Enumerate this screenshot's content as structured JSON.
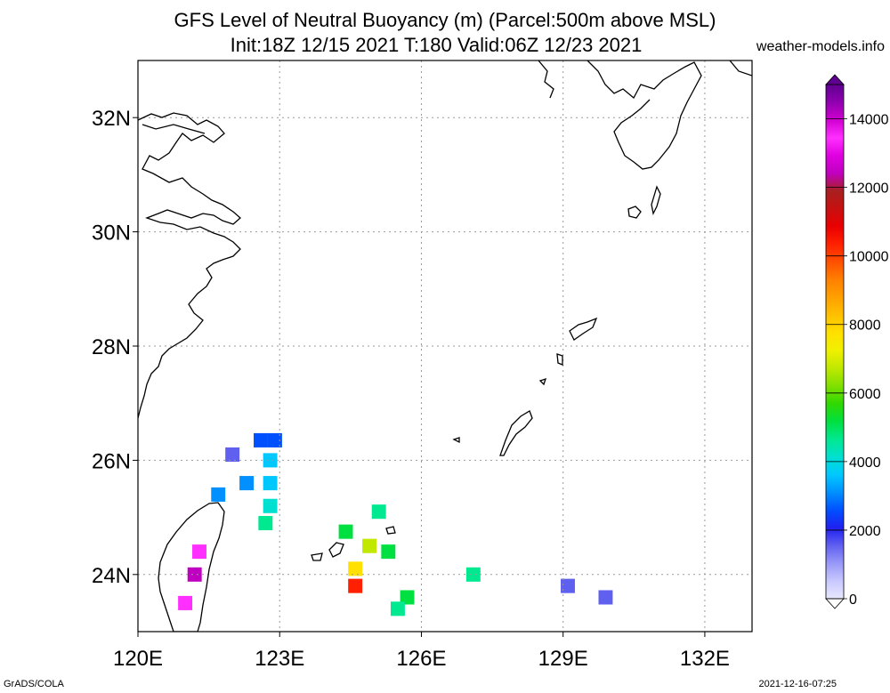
{
  "header": {
    "title_line1": "GFS Level of Neutral Buoyancy (m) (Parcel:500m above MSL)",
    "title_line2": "Init:18Z 12/15 2021 T:180 Valid:06Z 12/23 2021",
    "site": "weather-models.info"
  },
  "map": {
    "lon_range": [
      120,
      133
    ],
    "lat_range": [
      23,
      33
    ],
    "lon_ticks": [
      "120E",
      "123E",
      "126E",
      "129E",
      "132E"
    ],
    "lat_ticks": [
      "24N",
      "26N",
      "28N",
      "30N",
      "32N"
    ],
    "grid": "dotted"
  },
  "colorbar": {
    "unit": "m",
    "range": [
      0,
      15000
    ],
    "tick_labels": [
      "0",
      "2000",
      "4000",
      "6000",
      "8000",
      "10000",
      "12000",
      "14000"
    ],
    "colors": [
      "#e8e8ff",
      "#c8c8ff",
      "#9898f8",
      "#6060f0",
      "#2020f0",
      "#0050ff",
      "#0090ff",
      "#00c8ff",
      "#00e0d0",
      "#00e890",
      "#00e040",
      "#30d800",
      "#80e000",
      "#c0e800",
      "#f0f000",
      "#ffe000",
      "#ffc000",
      "#ffa000",
      "#ff8000",
      "#ff5000",
      "#ff2000",
      "#e80000",
      "#c81010",
      "#a82020",
      "#c000c0",
      "#e000e0",
      "#ff30ff",
      "#d000d0",
      "#9000b0",
      "#600090"
    ]
  },
  "field_cells": [
    {
      "lon": 122.0,
      "lat": 26.1,
      "value": 1500
    },
    {
      "lon": 122.6,
      "lat": 26.35,
      "value": 2600
    },
    {
      "lon": 122.9,
      "lat": 26.35,
      "value": 2600
    },
    {
      "lon": 122.8,
      "lat": 26.0,
      "value": 3500
    },
    {
      "lon": 122.8,
      "lat": 25.6,
      "value": 3800
    },
    {
      "lon": 122.3,
      "lat": 25.6,
      "value": 3300
    },
    {
      "lon": 121.7,
      "lat": 25.4,
      "value": 3000
    },
    {
      "lon": 122.8,
      "lat": 25.2,
      "value": 4200
    },
    {
      "lon": 122.7,
      "lat": 24.9,
      "value": 4600
    },
    {
      "lon": 121.3,
      "lat": 24.4,
      "value": 13500
    },
    {
      "lon": 121.2,
      "lat": 24.0,
      "value": 12500
    },
    {
      "lon": 121.0,
      "lat": 23.5,
      "value": 13300
    },
    {
      "lon": 124.4,
      "lat": 24.75,
      "value": 5200
    },
    {
      "lon": 124.9,
      "lat": 24.5,
      "value": 6500
    },
    {
      "lon": 124.6,
      "lat": 24.1,
      "value": 7500
    },
    {
      "lon": 124.6,
      "lat": 23.8,
      "value": 10500
    },
    {
      "lon": 125.3,
      "lat": 24.4,
      "value": 5000
    },
    {
      "lon": 125.1,
      "lat": 25.1,
      "value": 4800
    },
    {
      "lon": 125.7,
      "lat": 23.6,
      "value": 5200
    },
    {
      "lon": 125.5,
      "lat": 23.4,
      "value": 4500
    },
    {
      "lon": 127.1,
      "lat": 24.0,
      "value": 4800
    },
    {
      "lon": 129.1,
      "lat": 23.8,
      "value": 1500
    },
    {
      "lon": 129.9,
      "lat": 23.6,
      "value": 1500
    }
  ],
  "footer": {
    "left": "GrADS/COLA",
    "right": "2021-12-16-07:25"
  }
}
